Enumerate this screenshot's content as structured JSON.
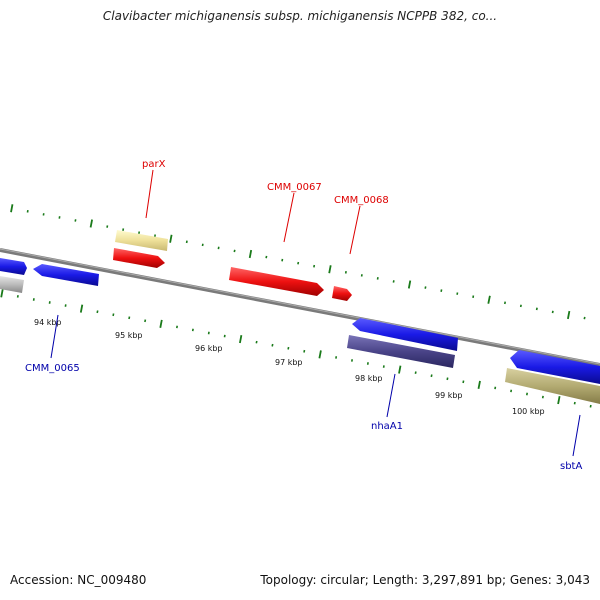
{
  "title": "Clavibacter michiganensis subsp. michiganensis NCPPB 382, co...",
  "footer": {
    "accession": "Accession: NC_009480",
    "summary": "Topology: circular; Length: 3,297,891 bp; Genes: 3,043"
  },
  "colors": {
    "forward_gene": "#1a1ae6",
    "rna_gene": "#ee1111",
    "reverse_gene": "#4a4488",
    "pseudo_gene": "#eee099",
    "other_gene": "#bbbbbb",
    "olive_gene": "#b3ab72",
    "tick": "#1a7a1a",
    "backbone": "#888888",
    "label_red": "#dd0000",
    "label_blue": "#0000aa"
  },
  "ruler": {
    "ticks": [
      {
        "label": "94 kbp"
      },
      {
        "label": "95 kbp"
      },
      {
        "label": "96 kbp"
      },
      {
        "label": "97 kbp"
      },
      {
        "label": "98 kbp"
      },
      {
        "label": "99 kbp"
      },
      {
        "label": "100 kbp"
      }
    ]
  },
  "gene_labels": [
    {
      "id": "parX",
      "label": "parX",
      "color": "red"
    },
    {
      "id": "CMM_0067",
      "label": "CMM_0067",
      "color": "red"
    },
    {
      "id": "CMM_0068",
      "label": "CMM_0068",
      "color": "red"
    },
    {
      "id": "CMM_0065",
      "label": "CMM_0065",
      "color": "blue"
    },
    {
      "id": "nhaA1",
      "label": "nhaA1",
      "color": "blue"
    },
    {
      "id": "sbtA",
      "label": "sbtA",
      "color": "blue"
    }
  ]
}
